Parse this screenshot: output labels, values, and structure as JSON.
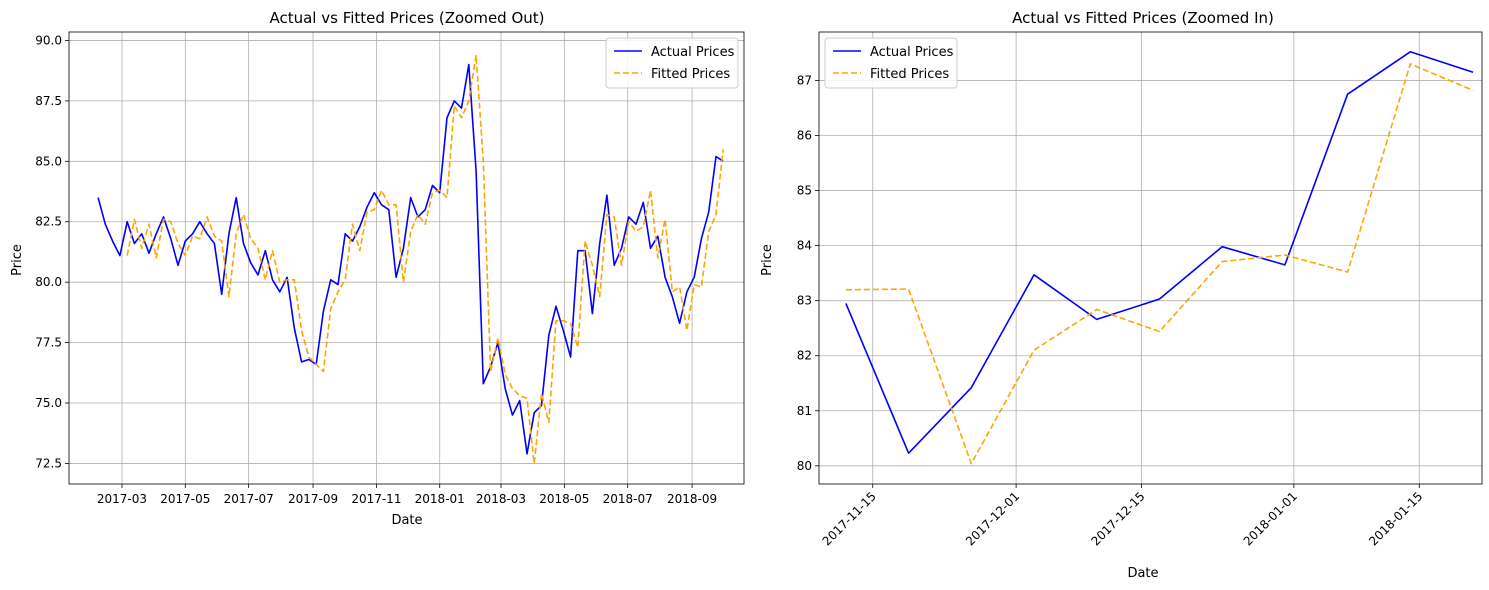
{
  "chart_data": [
    {
      "type": "line",
      "title": "Actual vs Fitted Prices (Zoomed Out)",
      "xlabel": "Date",
      "ylabel": "Price",
      "xlim": [
        "2017-01-09",
        "2018-10-21"
      ],
      "ylim": [
        71.65,
        90.35
      ],
      "x_ticks": [
        "2017-03-01",
        "2017-05-01",
        "2017-07-01",
        "2017-09-01",
        "2017-11-01",
        "2018-01-01",
        "2018-03-01",
        "2018-05-01",
        "2018-07-01",
        "2018-09-01"
      ],
      "x_tick_labels": [
        "2017-03",
        "2017-05",
        "2017-07",
        "2017-09",
        "2017-11",
        "2018-01",
        "2018-03",
        "2018-05",
        "2018-07",
        "2018-09"
      ],
      "y_ticks": [
        72.5,
        75.0,
        77.5,
        80.0,
        82.5,
        85.0,
        87.5,
        90.0
      ],
      "y_tick_labels": [
        "72.5",
        "75.0",
        "77.5",
        "80.0",
        "82.5",
        "85.0",
        "87.5",
        "90.0"
      ],
      "grid": true,
      "legend": "top-right",
      "series": [
        {
          "name": "Actual Prices",
          "color": "#0000ff",
          "style": "solid",
          "points": [
            [
              "2017-02-06",
              83.5
            ],
            [
              "2017-02-13",
              82.4
            ],
            [
              "2017-02-20",
              81.7
            ],
            [
              "2017-02-27",
              81.1
            ],
            [
              "2017-03-06",
              82.5
            ],
            [
              "2017-03-13",
              81.6
            ],
            [
              "2017-03-20",
              82.0
            ],
            [
              "2017-03-27",
              81.2
            ],
            [
              "2017-04-03",
              82.0
            ],
            [
              "2017-04-10",
              82.7
            ],
            [
              "2017-04-17",
              81.8
            ],
            [
              "2017-04-24",
              80.7
            ],
            [
              "2017-05-01",
              81.7
            ],
            [
              "2017-05-08",
              82.0
            ],
            [
              "2017-05-15",
              82.5
            ],
            [
              "2017-05-22",
              82.0
            ],
            [
              "2017-05-29",
              81.6
            ],
            [
              "2017-06-05",
              79.5
            ],
            [
              "2017-06-12",
              82.0
            ],
            [
              "2017-06-19",
              83.5
            ],
            [
              "2017-06-26",
              81.6
            ],
            [
              "2017-07-03",
              80.8
            ],
            [
              "2017-07-10",
              80.3
            ],
            [
              "2017-07-17",
              81.3
            ],
            [
              "2017-07-24",
              80.1
            ],
            [
              "2017-07-31",
              79.6
            ],
            [
              "2017-08-07",
              80.2
            ],
            [
              "2017-08-14",
              78.1
            ],
            [
              "2017-08-21",
              76.7
            ],
            [
              "2017-08-28",
              76.8
            ],
            [
              "2017-09-04",
              76.6
            ],
            [
              "2017-09-11",
              78.8
            ],
            [
              "2017-09-18",
              80.1
            ],
            [
              "2017-09-25",
              79.9
            ],
            [
              "2017-10-02",
              82.0
            ],
            [
              "2017-10-09",
              81.7
            ],
            [
              "2017-10-16",
              82.3
            ],
            [
              "2017-10-23",
              83.1
            ],
            [
              "2017-10-30",
              83.7
            ],
            [
              "2017-11-06",
              83.2
            ],
            [
              "2017-11-13",
              83.0
            ],
            [
              "2017-11-20",
              80.2
            ],
            [
              "2017-11-27",
              81.4
            ],
            [
              "2017-12-04",
              83.5
            ],
            [
              "2017-12-11",
              82.7
            ],
            [
              "2017-12-18",
              83.0
            ],
            [
              "2017-12-25",
              84.0
            ],
            [
              "2018-01-01",
              83.7
            ],
            [
              "2018-01-08",
              86.8
            ],
            [
              "2018-01-15",
              87.5
            ],
            [
              "2018-01-22",
              87.2
            ],
            [
              "2018-01-29",
              89.0
            ],
            [
              "2018-02-05",
              84.6
            ],
            [
              "2018-02-12",
              75.8
            ],
            [
              "2018-02-19",
              76.5
            ],
            [
              "2018-02-26",
              77.5
            ],
            [
              "2018-03-05",
              75.6
            ],
            [
              "2018-03-12",
              74.5
            ],
            [
              "2018-03-19",
              75.1
            ],
            [
              "2018-03-26",
              72.9
            ],
            [
              "2018-04-02",
              74.6
            ],
            [
              "2018-04-09",
              74.9
            ],
            [
              "2018-04-16",
              77.8
            ],
            [
              "2018-04-23",
              79.0
            ],
            [
              "2018-04-30",
              78.0
            ],
            [
              "2018-05-07",
              76.9
            ],
            [
              "2018-05-14",
              81.3
            ],
            [
              "2018-05-21",
              81.3
            ],
            [
              "2018-05-28",
              78.7
            ],
            [
              "2018-06-04",
              81.6
            ],
            [
              "2018-06-11",
              83.6
            ],
            [
              "2018-06-18",
              80.7
            ],
            [
              "2018-06-25",
              81.4
            ],
            [
              "2018-07-02",
              82.7
            ],
            [
              "2018-07-09",
              82.4
            ],
            [
              "2018-07-16",
              83.3
            ],
            [
              "2018-07-23",
              81.4
            ],
            [
              "2018-07-30",
              81.9
            ],
            [
              "2018-08-06",
              80.2
            ],
            [
              "2018-08-13",
              79.4
            ],
            [
              "2018-08-20",
              78.3
            ],
            [
              "2018-08-27",
              79.6
            ],
            [
              "2018-09-03",
              80.2
            ],
            [
              "2018-09-10",
              81.8
            ],
            [
              "2018-09-17",
              82.9
            ],
            [
              "2018-09-24",
              85.2
            ],
            [
              "2018-10-01",
              85.0
            ]
          ]
        },
        {
          "name": "Fitted Prices",
          "color": "#ffa500",
          "style": "dashed",
          "points": [
            [
              "2017-03-06",
              81.1
            ],
            [
              "2017-03-13",
              82.6
            ],
            [
              "2017-03-20",
              81.4
            ],
            [
              "2017-03-27",
              82.4
            ],
            [
              "2017-04-03",
              81.0
            ],
            [
              "2017-04-10",
              82.6
            ],
            [
              "2017-04-17",
              82.5
            ],
            [
              "2017-04-24",
              81.6
            ],
            [
              "2017-05-01",
              81.1
            ],
            [
              "2017-05-08",
              81.9
            ],
            [
              "2017-05-15",
              81.8
            ],
            [
              "2017-05-22",
              82.7
            ],
            [
              "2017-05-29",
              81.9
            ],
            [
              "2017-06-05",
              81.7
            ],
            [
              "2017-06-12",
              79.4
            ],
            [
              "2017-06-19",
              82.0
            ],
            [
              "2017-06-26",
              82.8
            ],
            [
              "2017-07-03",
              81.8
            ],
            [
              "2017-07-10",
              81.4
            ],
            [
              "2017-07-17",
              80.1
            ],
            [
              "2017-07-24",
              81.3
            ],
            [
              "2017-07-31",
              80.0
            ],
            [
              "2017-08-07",
              80.1
            ],
            [
              "2017-08-14",
              80.1
            ],
            [
              "2017-08-21",
              78.0
            ],
            [
              "2017-08-28",
              76.9
            ],
            [
              "2017-09-04",
              76.6
            ],
            [
              "2017-09-11",
              76.3
            ],
            [
              "2017-09-18",
              78.9
            ],
            [
              "2017-09-25",
              79.6
            ],
            [
              "2017-10-02",
              80.1
            ],
            [
              "2017-10-09",
              82.4
            ],
            [
              "2017-10-16",
              81.3
            ],
            [
              "2017-10-23",
              82.9
            ],
            [
              "2017-10-30",
              83.0
            ],
            [
              "2017-11-06",
              83.8
            ],
            [
              "2017-11-13",
              83.2
            ],
            [
              "2017-11-20",
              83.2
            ],
            [
              "2017-11-27",
              80.0
            ],
            [
              "2017-12-04",
              82.1
            ],
            [
              "2017-12-11",
              82.8
            ],
            [
              "2017-12-18",
              82.4
            ],
            [
              "2017-12-25",
              83.7
            ],
            [
              "2018-01-01",
              83.8
            ],
            [
              "2018-01-08",
              83.5
            ],
            [
              "2018-01-15",
              87.3
            ],
            [
              "2018-01-22",
              86.8
            ],
            [
              "2018-01-29",
              87.5
            ],
            [
              "2018-02-05",
              89.4
            ],
            [
              "2018-02-12",
              85.0
            ],
            [
              "2018-02-19",
              76.3
            ],
            [
              "2018-02-26",
              77.7
            ],
            [
              "2018-03-05",
              76.2
            ],
            [
              "2018-03-12",
              75.6
            ],
            [
              "2018-03-19",
              75.3
            ],
            [
              "2018-03-26",
              75.2
            ],
            [
              "2018-04-02",
              72.5
            ],
            [
              "2018-04-09",
              75.4
            ],
            [
              "2018-04-16",
              74.2
            ],
            [
              "2018-04-23",
              78.4
            ],
            [
              "2018-04-30",
              78.4
            ],
            [
              "2018-05-07",
              78.3
            ],
            [
              "2018-05-14",
              77.3
            ],
            [
              "2018-05-21",
              81.7
            ],
            [
              "2018-05-28",
              80.7
            ],
            [
              "2018-06-04",
              79.4
            ],
            [
              "2018-06-11",
              82.8
            ],
            [
              "2018-06-18",
              82.7
            ],
            [
              "2018-06-25",
              80.7
            ],
            [
              "2018-07-02",
              82.5
            ],
            [
              "2018-07-09",
              82.1
            ],
            [
              "2018-07-16",
              82.3
            ],
            [
              "2018-07-23",
              83.8
            ],
            [
              "2018-07-30",
              81.0
            ],
            [
              "2018-08-06",
              82.6
            ],
            [
              "2018-08-13",
              79.6
            ],
            [
              "2018-08-20",
              79.8
            ],
            [
              "2018-08-27",
              78.0
            ],
            [
              "2018-09-03",
              79.9
            ],
            [
              "2018-09-10",
              79.8
            ],
            [
              "2018-09-17",
              82.1
            ],
            [
              "2018-09-24",
              82.8
            ],
            [
              "2018-10-01",
              85.5
            ]
          ]
        }
      ]
    },
    {
      "type": "line",
      "title": "Actual vs Fitted Prices (Zoomed In)",
      "xlabel": "Date",
      "ylabel": "Price",
      "xlim": [
        "2017-11-09",
        "2018-01-22"
      ],
      "ylim": [
        79.67,
        87.88
      ],
      "x_ticks": [
        "2017-11-15",
        "2017-12-01",
        "2017-12-15",
        "2018-01-01",
        "2018-01-15"
      ],
      "x_tick_labels": [
        "2017-11-15",
        "2017-12-01",
        "2017-12-15",
        "2018-01-01",
        "2018-01-15"
      ],
      "y_ticks": [
        80,
        81,
        82,
        83,
        84,
        85,
        86,
        87
      ],
      "y_tick_labels": [
        "80",
        "81",
        "82",
        "83",
        "84",
        "85",
        "86",
        "87"
      ],
      "grid": true,
      "legend": "top-left",
      "series": [
        {
          "name": "Actual Prices",
          "color": "#0000ff",
          "style": "solid",
          "points": [
            [
              "2017-11-12",
              82.95
            ],
            [
              "2017-11-19",
              80.23
            ],
            [
              "2017-11-26",
              81.42
            ],
            [
              "2017-12-03",
              83.47
            ],
            [
              "2017-12-10",
              82.66
            ],
            [
              "2017-12-17",
              83.03
            ],
            [
              "2017-12-24",
              83.98
            ],
            [
              "2017-12-31",
              83.65
            ],
            [
              "2018-01-07",
              86.75
            ],
            [
              "2018-01-14",
              87.52
            ],
            [
              "2018-01-21",
              87.15
            ]
          ]
        },
        {
          "name": "Fitted Prices",
          "color": "#ffa500",
          "style": "dashed",
          "points": [
            [
              "2017-11-12",
              83.2
            ],
            [
              "2017-11-19",
              83.21
            ],
            [
              "2017-11-26",
              80.04
            ],
            [
              "2017-12-03",
              82.1
            ],
            [
              "2017-12-10",
              82.84
            ],
            [
              "2017-12-17",
              82.44
            ],
            [
              "2017-12-24",
              83.71
            ],
            [
              "2017-12-31",
              83.83
            ],
            [
              "2018-01-07",
              83.52
            ],
            [
              "2018-01-14",
              87.3
            ],
            [
              "2018-01-21",
              86.82
            ]
          ]
        }
      ]
    }
  ]
}
